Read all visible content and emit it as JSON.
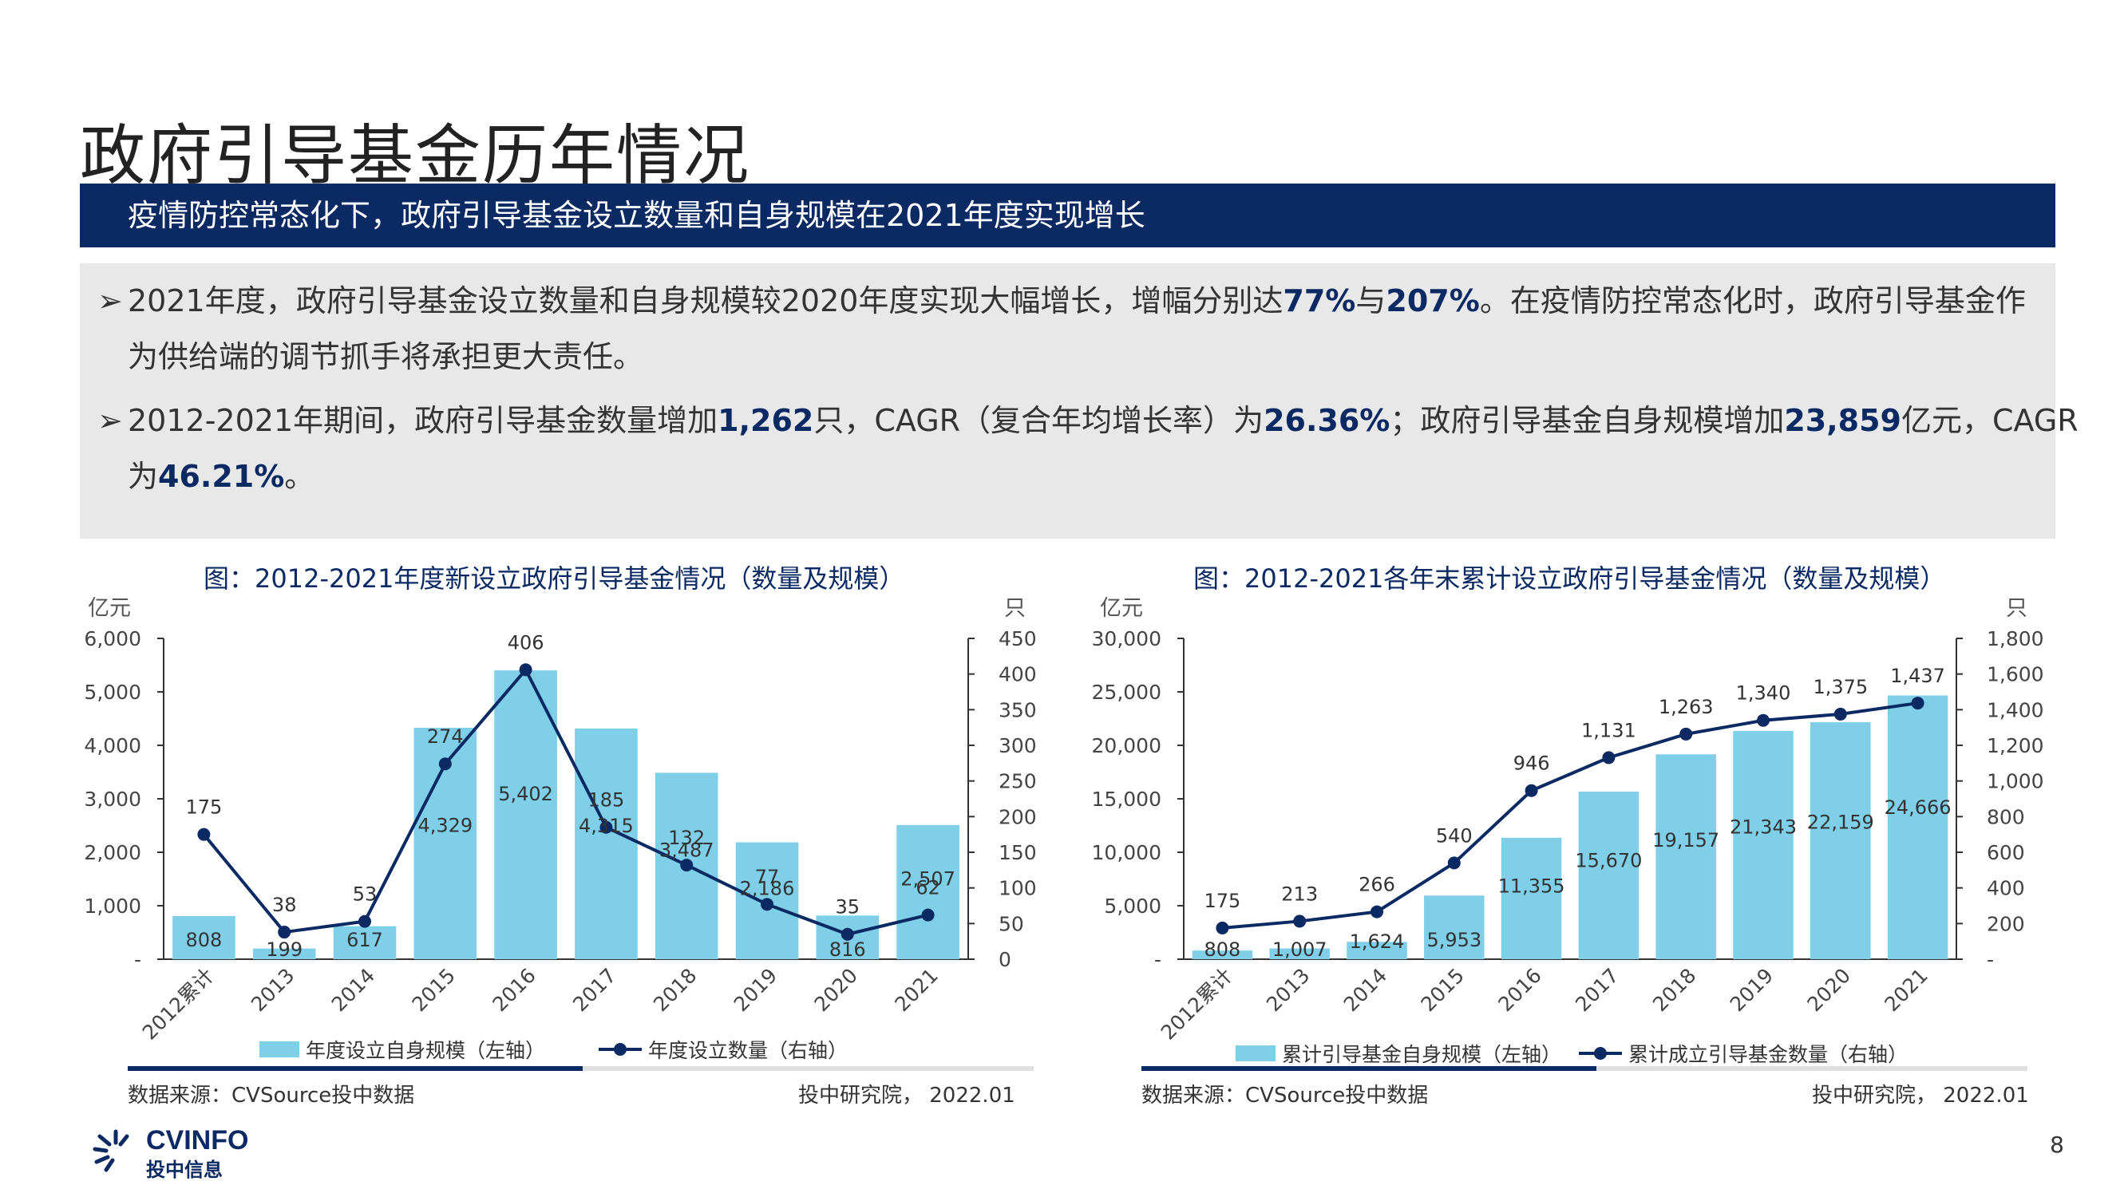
{
  "page_title": "政府引导基金历年情况",
  "banner": "疫情防控常态化下，政府引导基金设立数量和自身规模在2021年度实现增长",
  "bullets": [
    {
      "line1": [
        {
          "t": "2021年度，政府引导基金设立数量和自身规模较2020年度实现大幅增长，增幅分别达",
          "em": false
        },
        {
          "t": "77%",
          "em": true
        },
        {
          "t": "与",
          "em": false
        },
        {
          "t": "207%",
          "em": true
        },
        {
          "t": "。在疫情防控常态化时，政府引导基金作",
          "em": false
        }
      ],
      "line2": [
        {
          "t": "为供给端的调节抓手将承担更大责任。",
          "em": false
        }
      ]
    },
    {
      "line1": [
        {
          "t": "2012-2021年期间，政府引导基金数量增加",
          "em": false
        },
        {
          "t": "1,262",
          "em": true
        },
        {
          "t": "只，CAGR（复合年均增长率）为",
          "em": false
        },
        {
          "t": "26.36%",
          "em": true
        },
        {
          "t": "；政府引导基金自身规模增加",
          "em": false
        },
        {
          "t": "23,859",
          "em": true
        },
        {
          "t": "亿元，CAGR",
          "em": false
        }
      ],
      "line2": [
        {
          "t": "为",
          "em": false
        },
        {
          "t": "46.21%",
          "em": true
        },
        {
          "t": "。",
          "em": false
        }
      ]
    }
  ],
  "colors": {
    "bar": "#7fcfe8",
    "line": "#0b2a64",
    "banner": "#0b2a64"
  },
  "chart_data": [
    {
      "type": "bar",
      "title": "图：2012-2021年度新设立政府引导基金情况（数量及规模）",
      "left_unit": "亿元",
      "right_unit": "只",
      "categories": [
        "2012累计",
        "2013",
        "2014",
        "2015",
        "2016",
        "2017",
        "2018",
        "2019",
        "2020",
        "2021"
      ],
      "series": [
        {
          "name": "年度设立自身规模（左轴）",
          "axis": "left",
          "kind": "bar",
          "values": [
            808,
            199,
            617,
            4329,
            5402,
            4315,
            3487,
            2186,
            816,
            2507
          ],
          "labels": [
            "808",
            "199",
            "617",
            "4,329",
            "5,402",
            "4,315",
            "3,487",
            "2,186",
            "816",
            "2,507"
          ]
        },
        {
          "name": "年度设立数量（右轴）",
          "axis": "right",
          "kind": "line",
          "values": [
            175,
            38,
            53,
            274,
            406,
            185,
            132,
            77,
            35,
            62
          ],
          "labels": [
            "175",
            "38",
            "53",
            "274",
            "406",
            "185",
            "132",
            "77",
            "35",
            "62"
          ]
        }
      ],
      "ylim_left": [
        0,
        6000
      ],
      "ylim_right": [
        0,
        450
      ],
      "left_ticks": [
        "-",
        "1,000",
        "2,000",
        "3,000",
        "4,000",
        "5,000",
        "6,000"
      ],
      "right_ticks": [
        "0",
        "50",
        "100",
        "150",
        "200",
        "250",
        "300",
        "350",
        "400",
        "450"
      ],
      "source": "数据来源：CVSource投中数据",
      "credit": "投中研究院， 2022.01"
    },
    {
      "type": "bar",
      "title": "图：2012-2021各年末累计设立政府引导基金情况（数量及规模）",
      "left_unit": "亿元",
      "right_unit": "只",
      "categories": [
        "2012累计",
        "2013",
        "2014",
        "2015",
        "2016",
        "2017",
        "2018",
        "2019",
        "2020",
        "2021"
      ],
      "series": [
        {
          "name": "累计引导基金自身规模（左轴）",
          "axis": "left",
          "kind": "bar",
          "values": [
            808,
            1007,
            1624,
            5953,
            11355,
            15670,
            19157,
            21343,
            22159,
            24666
          ],
          "labels": [
            "808",
            "1,007",
            "1,624",
            "5,953",
            "11,355",
            "15,670",
            "19,157",
            "21,343",
            "22,159",
            "24,666"
          ]
        },
        {
          "name": "累计成立引导基金数量（右轴）",
          "axis": "right",
          "kind": "line",
          "values": [
            175,
            213,
            266,
            540,
            946,
            1131,
            1263,
            1340,
            1375,
            1437
          ],
          "labels": [
            "175",
            "213",
            "266",
            "540",
            "946",
            "1,131",
            "1,263",
            "1,340",
            "1,375",
            "1,437"
          ]
        }
      ],
      "ylim_left": [
        0,
        30000
      ],
      "ylim_right": [
        0,
        1800
      ],
      "left_ticks": [
        "-",
        "5,000",
        "10,000",
        "15,000",
        "20,000",
        "25,000",
        "30,000"
      ],
      "right_ticks": [
        "-",
        "200",
        "400",
        "600",
        "800",
        "1,000",
        "1,200",
        "1,400",
        "1,600",
        "1,800"
      ],
      "source": "数据来源：CVSource投中数据",
      "credit": "投中研究院， 2022.01"
    }
  ],
  "logo": {
    "en": "CVINFO",
    "cn": "投中信息"
  },
  "page_number": "8",
  "watermark": "CVSource"
}
